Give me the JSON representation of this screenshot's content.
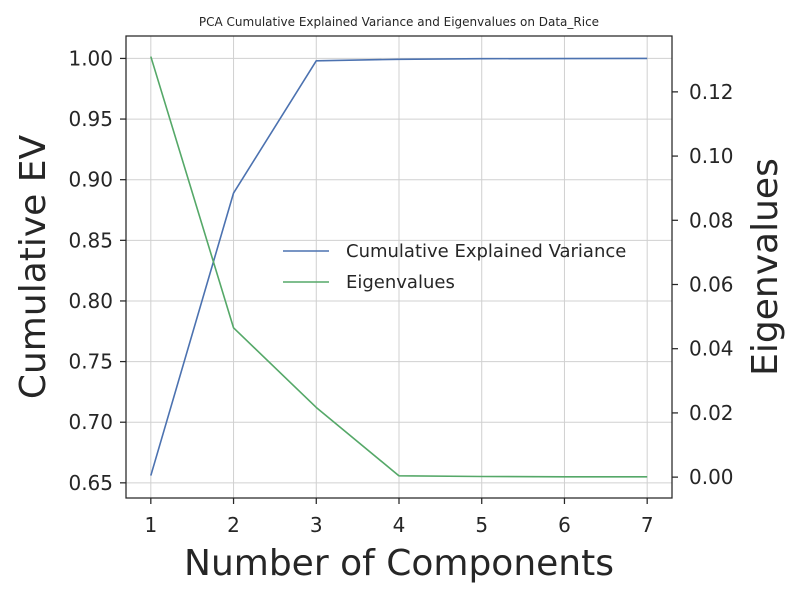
{
  "chart_data": {
    "type": "line",
    "title": "PCA Cumulative Explained Variance and Eigenvalues on Data_Rice",
    "xlabel": "Number of Components",
    "ylabel_left": "Cumulative EV",
    "ylabel_right": "Eigenvalues",
    "x": [
      1,
      2,
      3,
      4,
      5,
      6,
      7
    ],
    "x_ticks": [
      "1",
      "2",
      "3",
      "4",
      "5",
      "6",
      "7"
    ],
    "xlim": [
      0.7,
      7.3
    ],
    "ylim_left": [
      0.6375,
      1.0185
    ],
    "y_ticks_left": [
      "0.65",
      "0.70",
      "0.75",
      "0.80",
      "0.85",
      "0.90",
      "0.95",
      "1.00"
    ],
    "ylim_right": [
      -0.0065,
      0.1374
    ],
    "y_ticks_right": [
      "0.00",
      "0.02",
      "0.04",
      "0.06",
      "0.08",
      "0.10",
      "0.12"
    ],
    "grid": true,
    "legend_position": "center-right",
    "series": [
      {
        "name": "Cumulative Explained Variance",
        "axis": "left",
        "color": "#4c72b0",
        "values": [
          0.656,
          0.889,
          0.998,
          0.9993,
          0.9998,
          0.9999,
          1.0
        ]
      },
      {
        "name": "Eigenvalues",
        "axis": "right",
        "color": "#55a868",
        "values": [
          0.131,
          0.0465,
          0.0217,
          0.0004,
          0.0002,
          0.0001,
          0.0001
        ]
      }
    ]
  }
}
